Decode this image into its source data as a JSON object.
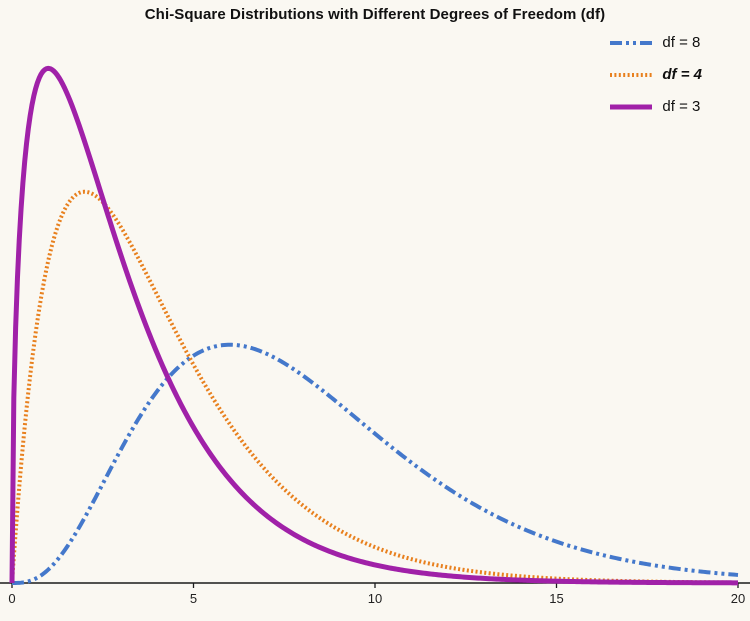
{
  "chart_data": {
    "type": "line",
    "title": "Chi-Square Distributions with Different Degrees of Freedom (df)",
    "xlabel": "",
    "ylabel": "",
    "xlim": [
      0,
      20
    ],
    "ylim": [
      0,
      0.26
    ],
    "x_ticks": [
      0,
      5,
      10,
      15,
      20
    ],
    "grid": false,
    "legend_position": "top-right",
    "background_color": "#faf8f2",
    "axis_color": "#1b1b1b",
    "series": [
      {
        "name": "df = 8",
        "df": 8,
        "distribution": "chi-square pdf",
        "pdf_coeff": 0.0104167,
        "pdf_power": 3,
        "color": "#4478cb",
        "line_style": "dash-dot-dot",
        "dash": [
          12,
          4,
          3,
          4,
          3,
          4
        ],
        "width": 4,
        "label_bold": false,
        "label_italic": false,
        "peak_x": 6,
        "peak_y": 0.112,
        "x_samples": [
          0,
          1,
          2,
          3,
          4,
          5,
          6,
          7,
          8,
          9,
          10,
          11,
          12,
          13,
          14,
          15,
          16,
          17,
          18,
          19,
          20
        ],
        "y_samples": [
          0,
          0.00632,
          0.03066,
          0.06276,
          0.09022,
          0.10687,
          0.11202,
          0.10789,
          0.09768,
          0.08436,
          0.07019,
          0.05666,
          0.04462,
          0.0344,
          0.02606,
          0.01944,
          0.01431,
          0.01041,
          0.0075,
          0.00535,
          0.00378
        ]
      },
      {
        "name": "df = 4",
        "df": 4,
        "distribution": "chi-square pdf",
        "pdf_coeff": 0.25,
        "pdf_power": 1,
        "color": "#e8801e",
        "line_style": "dotted",
        "dash": [
          2,
          2.4
        ],
        "width": 4,
        "label_bold": true,
        "label_italic": true,
        "peak_x": 2,
        "peak_y": 0.1839,
        "x_samples": [
          0,
          1,
          2,
          3,
          4,
          5,
          6,
          7,
          8,
          9,
          10,
          11,
          12,
          13,
          14,
          15,
          16,
          17,
          18,
          19,
          20
        ],
        "y_samples": [
          0,
          0.15163,
          0.18394,
          0.16735,
          0.13534,
          0.1026,
          0.07468,
          0.05284,
          0.03663,
          0.02499,
          0.01684,
          0.01124,
          0.00744,
          0.00489,
          0.00319,
          0.00207,
          0.00134,
          0.00086,
          0.00056,
          0.00036,
          0.00023
        ]
      },
      {
        "name": "df = 3",
        "df": 3,
        "distribution": "chi-square pdf",
        "pdf_coeff": 0.39894,
        "pdf_power": 0.5,
        "color": "#a021a8",
        "line_style": "solid",
        "dash": [],
        "width": 5,
        "label_bold": false,
        "label_italic": false,
        "peak_x": 1,
        "peak_y": 0.242,
        "x_samples": [
          0,
          1,
          2,
          3,
          4,
          5,
          6,
          7,
          8,
          9,
          10,
          11,
          12,
          13,
          14,
          15,
          16,
          17,
          18,
          19,
          20
        ],
        "y_samples": [
          0,
          0.24197,
          0.20755,
          0.15418,
          0.10798,
          0.07322,
          0.04865,
          0.03187,
          0.02067,
          0.0133,
          0.0085,
          0.00541,
          0.00343,
          0.00216,
          0.00136,
          0.00085,
          0.00054,
          0.00033,
          0.00021,
          0.00013,
          8e-05
        ]
      }
    ]
  }
}
